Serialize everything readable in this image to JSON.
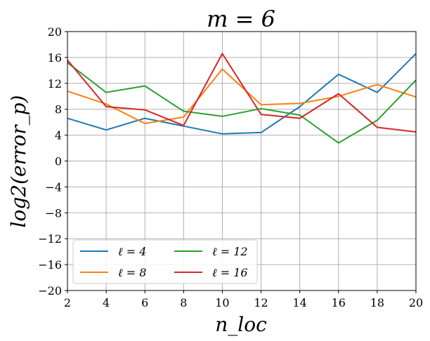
{
  "chart_data": {
    "type": "line",
    "title": "m = 6",
    "xlabel": "n_loc",
    "ylabel": "log2(error_p)",
    "x": [
      2,
      4,
      6,
      8,
      10,
      12,
      14,
      16,
      18,
      20
    ],
    "xlim": [
      2,
      20
    ],
    "ylim": [
      -20,
      20
    ],
    "xticks": [
      2,
      4,
      6,
      8,
      10,
      12,
      14,
      16,
      18,
      20
    ],
    "yticks": [
      -20,
      -16,
      -12,
      -8,
      -4,
      0,
      4,
      8,
      12,
      16,
      20
    ],
    "grid": true,
    "legend_position": "lower-left",
    "legend_columns": 2,
    "series": [
      {
        "name": "ℓ = 4",
        "color": "#1f77b4",
        "values": [
          6.6,
          4.8,
          6.6,
          5.4,
          4.2,
          4.4,
          8.4,
          13.4,
          10.6,
          16.6
        ]
      },
      {
        "name": "ℓ = 8",
        "color": "#ff7f0e",
        "values": [
          10.8,
          8.8,
          5.8,
          6.8,
          14.2,
          8.7,
          8.9,
          10.0,
          11.8,
          9.9
        ]
      },
      {
        "name": "ℓ = 12",
        "color": "#2ca02c",
        "values": [
          15.2,
          10.6,
          11.6,
          7.7,
          6.9,
          8.1,
          7.1,
          2.8,
          6.3,
          12.5
        ]
      },
      {
        "name": "ℓ = 16",
        "color": "#d62728",
        "values": [
          15.6,
          8.4,
          7.9,
          5.5,
          16.6,
          7.2,
          6.6,
          10.4,
          5.2,
          4.5
        ]
      }
    ]
  }
}
